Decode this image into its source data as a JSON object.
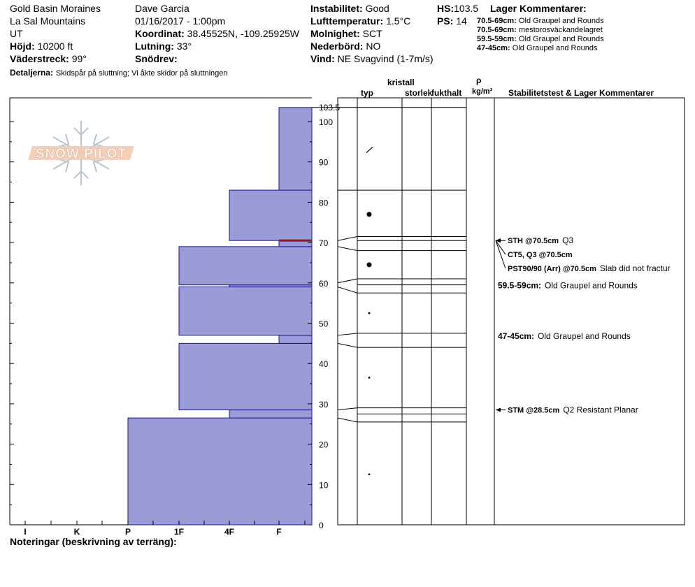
{
  "header": {
    "location": "Gold Basin Moraines",
    "range": "La Sal Mountains",
    "state": "UT",
    "elevation_label": "Höjd:",
    "elevation_value": "10200 ft",
    "aspect_label": "Väderstreck:",
    "aspect_value": "99°",
    "observer": "Dave Garcia",
    "datetime": "01/16/2017 - 1:00pm",
    "coord_label": "Koordinat:",
    "coord_value": "38.45525N, -109.25925W",
    "slope_label": "Lutning:",
    "slope_value": "33°",
    "drift_label": "Snödrev:",
    "drift_value": "",
    "stability_label": "Instabilitet:",
    "stability_value": "Good",
    "airtemp_label": "Lufttemperatur:",
    "airtemp_value": "1.5°C",
    "sky_label": "Molnighet:",
    "sky_value": "SCT",
    "precip_label": "Nederbörd:",
    "precip_value": "NO",
    "wind_label": "Vind:",
    "wind_value": "NE Svagvind (1-7m/s)",
    "hs_label": "HS:",
    "hs_value": "103.5",
    "ps_label": "PS:",
    "ps_value": "14",
    "layer_comments_title": "Lager Kommentarer:",
    "layer_comments": [
      {
        "range": "70.5-69cm:",
        "text": "Old Graupel and Rounds"
      },
      {
        "range": "70.5-69cm:",
        "text": "mestorosväckandelagret"
      },
      {
        "range": "59.5-59cm:",
        "text": "Old Graupel and Rounds"
      },
      {
        "range": "47-45cm:",
        "text": "Old Graupel and Rounds"
      }
    ],
    "details_label": "Detaljerna:",
    "details_value": "Skidspår på sluttning;  Vi åkte skidor på sluttningen"
  },
  "footer": {
    "notes_label": "Noteringar (beskrivning av terräng):"
  },
  "logo": {
    "text": "SNOW PILOT"
  },
  "table_headers": {
    "kristall": "kristall",
    "typ": "typ",
    "storlek": "storlek",
    "fukthalt": "fukthalt",
    "rho": "ρ",
    "density_unit": "kg/m³",
    "stability": "Stabilitetstest & Lager Kommentarer"
  },
  "chart_data": {
    "type": "bar",
    "orientation": "horizontal",
    "title": "",
    "ylabel": "",
    "xlabel": "",
    "ylim": [
      0,
      103.5
    ],
    "y_ticks": [
      0,
      10,
      20,
      30,
      40,
      50,
      60,
      70,
      80,
      90,
      100
    ],
    "top_label": "103.5",
    "x_categories": [
      "I",
      "K",
      "P",
      "1F",
      "4F",
      "F"
    ],
    "bar_color": "#9b9bd7",
    "critical_layer_color": "#8b1a1a",
    "layers": [
      {
        "bottom": 0,
        "top": 26.5,
        "hardness": "P"
      },
      {
        "bottom": 26.5,
        "top": 28.5,
        "hardness": "4F"
      },
      {
        "bottom": 28.5,
        "top": 45,
        "hardness": "1F"
      },
      {
        "bottom": 45,
        "top": 47,
        "hardness": "F"
      },
      {
        "bottom": 47,
        "top": 59,
        "hardness": "1F"
      },
      {
        "bottom": 59,
        "top": 59.5,
        "hardness": "4F"
      },
      {
        "bottom": 59.5,
        "top": 69,
        "hardness": "1F"
      },
      {
        "bottom": 69,
        "top": 70.5,
        "hardness": "F"
      },
      {
        "bottom": 70.5,
        "top": 83,
        "hardness": "4F"
      },
      {
        "bottom": 83,
        "top": 103.5,
        "hardness": "F"
      }
    ],
    "critical_layer": 70.5,
    "profile_boundaries": [
      103.5,
      83,
      71.5,
      70.5,
      68,
      61,
      59.5,
      57.5,
      47.5,
      44,
      29,
      27.5,
      25.5
    ],
    "profile_links": [
      [
        103.5,
        103.5
      ],
      [
        83,
        83
      ],
      [
        70.5,
        71.5
      ],
      [
        69,
        68
      ],
      [
        60,
        61
      ],
      [
        59,
        57.5
      ],
      [
        47,
        47.5
      ],
      [
        45,
        44
      ],
      [
        28.5,
        29
      ],
      [
        26.5,
        25.5
      ]
    ],
    "grain_symbols": [
      {
        "height": 93,
        "symbol": "slash"
      },
      {
        "height": 77,
        "symbol": "large-dot"
      },
      {
        "height": 64.5,
        "symbol": "large-dot"
      },
      {
        "height": 52.5,
        "symbol": "small-dot"
      },
      {
        "height": 36.5,
        "symbol": "small-dot"
      },
      {
        "height": 12.5,
        "symbol": "small-dot"
      }
    ],
    "tests": [
      {
        "height": 70.5,
        "label": "STH @70.5cm",
        "comment": "Q3"
      },
      {
        "height": 70.5,
        "label": "CT5, Q3 @70.5cm",
        "comment": ""
      },
      {
        "height": 70.5,
        "label": "PST90/90 (Arr) @70.5cm",
        "comment": "Slab did not fractur"
      },
      {
        "height": 28.5,
        "label": "STM @28.5cm",
        "comment": "Q2 Resistant Planar"
      }
    ],
    "layer_notes": [
      {
        "height": 59.5,
        "label": "59.5-59cm:",
        "comment": "Old Graupel and Rounds"
      },
      {
        "height": 47,
        "label": "47-45cm:",
        "comment": "Old Graupel and Rounds"
      }
    ]
  }
}
